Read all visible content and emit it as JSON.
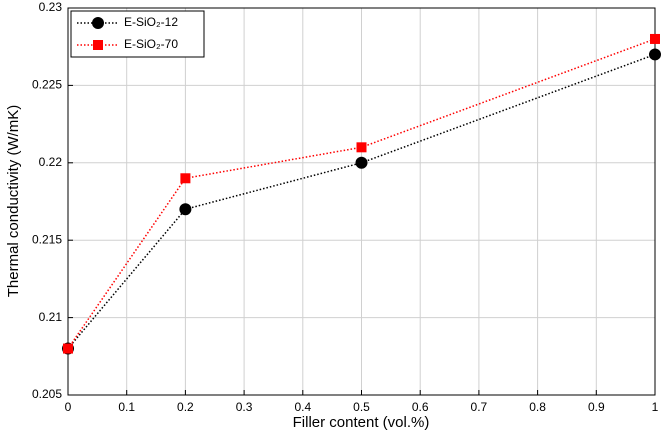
{
  "chart_data": {
    "type": "line",
    "x_label": "Filler content (vol.%)",
    "y_label": "Thermal conductivity (W/mK)",
    "x": [
      0,
      0.2,
      0.5,
      1
    ],
    "series": [
      {
        "name": "E-SiO₂-12",
        "color": "#000000",
        "marker": "circle",
        "values": [
          0.208,
          0.217,
          0.22,
          0.227
        ]
      },
      {
        "name": "E-SiO₂-70",
        "color": "#ff0000",
        "marker": "square",
        "values": [
          0.208,
          0.219,
          0.221,
          0.228
        ]
      }
    ],
    "xlim": [
      0,
      1
    ],
    "xticks": [
      0,
      0.1,
      0.2,
      0.3,
      0.4,
      0.5,
      0.6,
      0.7,
      0.8,
      0.9,
      1
    ],
    "ylim": [
      0.205,
      0.23
    ],
    "yticks": [
      0.205,
      0.21,
      0.215,
      0.22,
      0.225,
      0.23
    ],
    "grid": true,
    "legend": "upper left"
  }
}
